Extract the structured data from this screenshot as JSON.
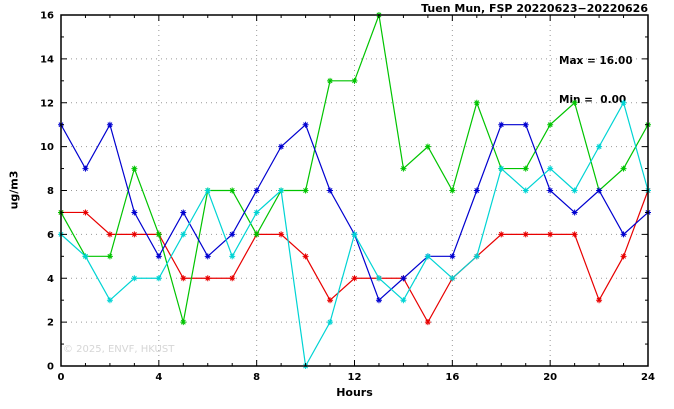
{
  "title": "Tuen Mun, FSP 20220623−20220626",
  "stats": {
    "max_label": "Max = 16.00",
    "min_label": "Min =  0.00"
  },
  "watermark": "© 2025, ENVF, HKUST",
  "chart_data": {
    "type": "line",
    "title": "Tuen Mun, FSP 20220623−20220626",
    "xlabel": "Hours",
    "ylabel": "ug/m3",
    "xlim": [
      0,
      24
    ],
    "ylim": [
      0,
      16
    ],
    "x_major_ticks": [
      0,
      4,
      8,
      12,
      16,
      20,
      24
    ],
    "y_major_ticks": [
      0,
      2,
      4,
      6,
      8,
      10,
      12,
      14,
      16
    ],
    "grid": "dotted",
    "legend": "none",
    "max": 16.0,
    "min": 0.0,
    "x": [
      0,
      1,
      2,
      3,
      4,
      5,
      6,
      7,
      8,
      9,
      10,
      11,
      12,
      13,
      14,
      15,
      16,
      17,
      18,
      19,
      20,
      21,
      22,
      23,
      24
    ],
    "series": [
      {
        "name": "series-red",
        "color": "#e80000",
        "values": [
          7,
          7,
          6,
          6,
          6,
          4,
          4,
          4,
          6,
          6,
          5,
          3,
          4,
          4,
          4,
          2,
          4,
          5,
          6,
          6,
          6,
          6,
          3,
          5,
          8
        ]
      },
      {
        "name": "series-green",
        "color": "#00c400",
        "values": [
          7,
          5,
          5,
          9,
          6,
          2,
          8,
          8,
          6,
          8,
          8,
          13,
          13,
          16,
          9,
          10,
          8,
          12,
          9,
          9,
          11,
          12,
          8,
          9,
          11
        ]
      },
      {
        "name": "series-blue",
        "color": "#0000d0",
        "values": [
          11,
          9,
          11,
          7,
          5,
          7,
          5,
          6,
          8,
          10,
          11,
          8,
          6,
          3,
          4,
          5,
          5,
          8,
          11,
          11,
          8,
          7,
          8,
          6,
          7
        ]
      },
      {
        "name": "series-cyan",
        "color": "#00d4d4",
        "values": [
          6,
          5,
          3,
          4,
          4,
          6,
          8,
          5,
          7,
          8,
          0,
          2,
          6,
          4,
          3,
          5,
          4,
          5,
          9,
          8,
          9,
          8,
          10,
          12,
          8
        ]
      }
    ]
  }
}
